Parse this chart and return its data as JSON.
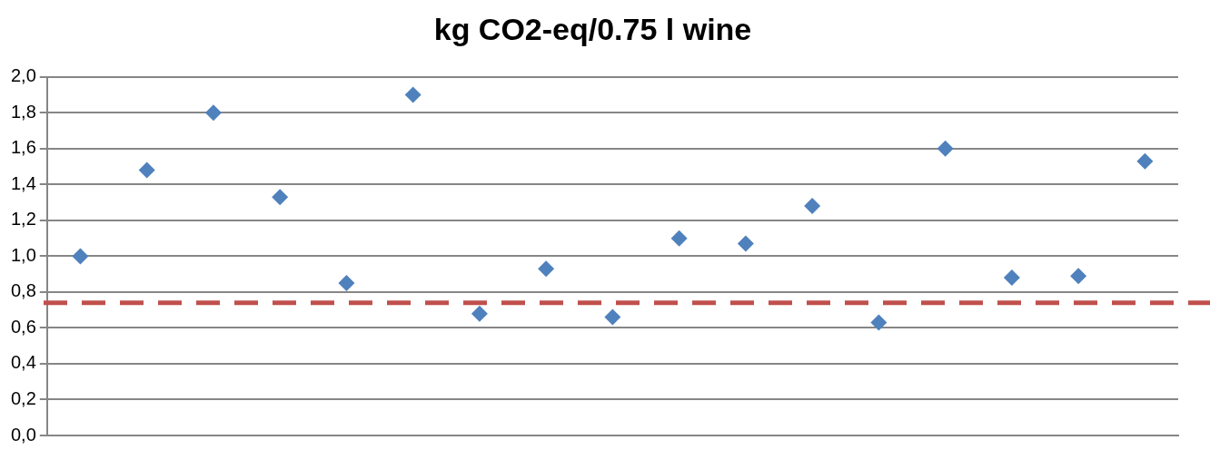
{
  "chart_data": {
    "type": "scatter",
    "title": "kg CO2-eq/0.75 l wine",
    "categories": [
      null,
      null,
      null,
      null,
      null,
      null,
      null,
      null,
      null,
      null,
      null,
      null,
      null,
      null,
      null,
      null,
      null
    ],
    "series": [
      {
        "color": "#4f81bd",
        "values": [
          1.0,
          1.48,
          1.8,
          1.33,
          0.85,
          1.9,
          0.68,
          0.93,
          0.66,
          1.1,
          1.07,
          1.28,
          0.63,
          1.6,
          0.88,
          0.89,
          1.53
        ]
      }
    ],
    "ylim": [
      0,
      2
    ],
    "yticks": [
      {
        "value": 0,
        "label": "0,0"
      },
      {
        "value": 0.2,
        "label": "0,2"
      },
      {
        "value": 0.4,
        "label": "0,4"
      },
      {
        "value": 0.6,
        "label": "0,6"
      },
      {
        "value": 0.8,
        "label": "0,8"
      },
      {
        "value": 1,
        "label": "1,0"
      },
      {
        "value": 1.2,
        "label": "1,2"
      },
      {
        "value": 1.4,
        "label": "1,4"
      },
      {
        "value": 1.6,
        "label": "1,6"
      },
      {
        "value": 1.8,
        "label": "1,8"
      },
      {
        "value": 2,
        "label": "2,0"
      }
    ],
    "ref_lines": [
      {
        "axis": "y",
        "value": 0.74,
        "color": "#c0504d",
        "line_style": "dashed"
      }
    ],
    "grid": "y",
    "marker": "diamond",
    "tick_labels": "y"
  }
}
